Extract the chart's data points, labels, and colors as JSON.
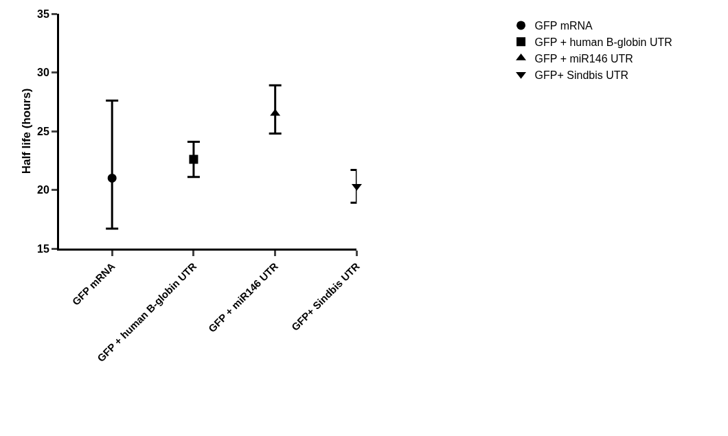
{
  "chart_data": {
    "type": "scatter",
    "ylabel": "Half life (hours)",
    "categories": [
      "GFP mRNA",
      "GFP + human B-globin UTR",
      "GFP + miR146 UTR",
      "GFP+ Sindbis UTR"
    ],
    "series": [
      {
        "name": "GFP mRNA",
        "color": "#000000",
        "marker": "circle",
        "values": [
          21.0,
          null,
          null,
          null
        ],
        "errors": [
          [
            16.7,
            27.6
          ],
          null,
          null,
          null
        ]
      },
      {
        "name": "GFP + human B-globin UTR",
        "color": "#000000",
        "marker": "square",
        "values": [
          null,
          22.6,
          null,
          null
        ],
        "errors": [
          null,
          [
            21.1,
            24.1
          ],
          null,
          null
        ]
      },
      {
        "name": "GFP + miR146 UTR",
        "color": "#000000",
        "marker": "triangle",
        "values": [
          null,
          null,
          26.5,
          null
        ],
        "errors": [
          null,
          null,
          [
            24.8,
            28.9
          ],
          null
        ]
      },
      {
        "name": "GFP+ Sindbis UTR",
        "color": "#000000",
        "marker": "triangle-down",
        "values": [
          null,
          null,
          null,
          20.3
        ],
        "errors": [
          null,
          null,
          null,
          [
            18.9,
            21.7
          ]
        ]
      }
    ],
    "ylim": [
      15,
      35
    ],
    "yticks": [
      15,
      20,
      25,
      30,
      35
    ],
    "legend": "top right"
  }
}
